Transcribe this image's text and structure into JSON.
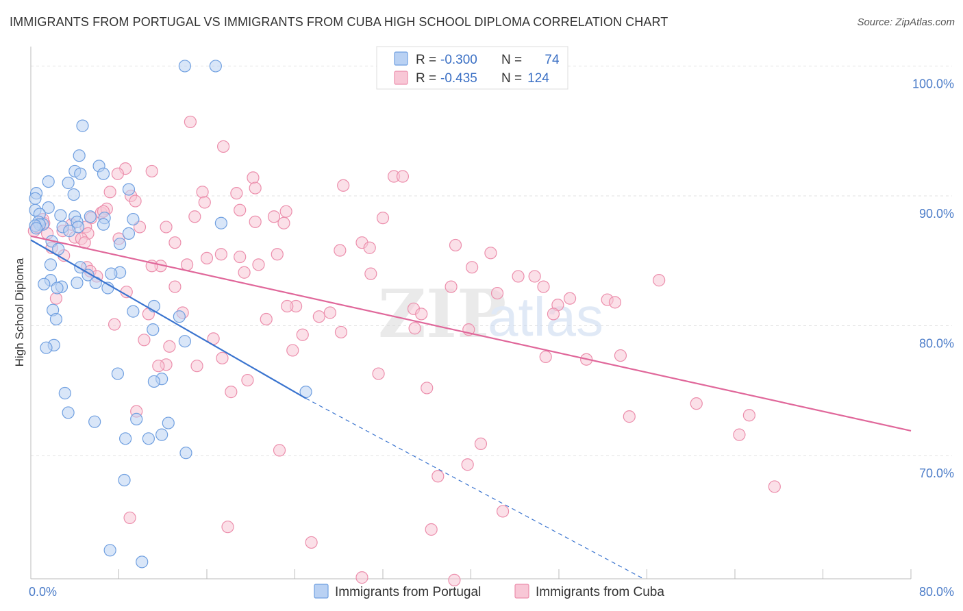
{
  "title": "IMMIGRANTS FROM PORTUGAL VS IMMIGRANTS FROM CUBA HIGH SCHOOL DIPLOMA CORRELATION CHART",
  "source": "Source: ZipAtlas.com",
  "watermark": {
    "zip": "ZIP",
    "atlas": "atlas"
  },
  "colors": {
    "portugal": "#6f9fe0",
    "portugal_fill": "#b9d1f3",
    "portugal_line": "#3a74cf",
    "cuba": "#ec8eac",
    "cuba_fill": "#f8c7d6",
    "cuba_line": "#e0679a",
    "grid": "#e2e2e2",
    "axis_text": "#4a7bc8"
  },
  "legend_top": {
    "portugal": {
      "r_label": "R =",
      "r_value": "-0.300",
      "n_label": "N =",
      "n_value": "74"
    },
    "cuba": {
      "r_label": "R =",
      "r_value": "-0.435",
      "n_label": "N =",
      "n_value": "124"
    }
  },
  "chart_data": {
    "type": "scatter",
    "title": "IMMIGRANTS FROM PORTUGAL VS IMMIGRANTS FROM CUBA HIGH SCHOOL DIPLOMA CORRELATION CHART",
    "xlabel": "",
    "ylabel": "High School Diploma",
    "xlim": [
      0,
      80
    ],
    "ylim": [
      60.5,
      101.5
    ],
    "x_tick_labels": [
      {
        "value": 0,
        "label": "0.0%"
      },
      {
        "value": 80,
        "label": "80.0%"
      }
    ],
    "x_minor_ticks": [
      0,
      8,
      16,
      24,
      32,
      40,
      48,
      56,
      64,
      72,
      80
    ],
    "y_ticks": [
      {
        "value": 100,
        "label": "100.0%"
      },
      {
        "value": 90,
        "label": "90.0%"
      },
      {
        "value": 80,
        "label": "80.0%"
      },
      {
        "value": 70,
        "label": "70.0%"
      }
    ],
    "grid": true,
    "legend_position": "bottom-center",
    "series": [
      {
        "name": "Immigrants from Portugal",
        "color": "#6f9fe0",
        "r": -0.3,
        "n": 74,
        "trend": {
          "x0": 0,
          "y0": 86.6,
          "x1": 25,
          "y1": 74.4,
          "dash_to_x": 55.7,
          "dash_to_y": 60.5
        },
        "points": [
          [
            14.0,
            100.0
          ],
          [
            16.8,
            100.0
          ],
          [
            4.7,
            95.4
          ],
          [
            4.4,
            93.1
          ],
          [
            6.2,
            92.3
          ],
          [
            4.0,
            91.9
          ],
          [
            6.6,
            91.7
          ],
          [
            4.5,
            91.7
          ],
          [
            1.6,
            91.1
          ],
          [
            3.4,
            91.0
          ],
          [
            8.9,
            90.5
          ],
          [
            0.5,
            90.2
          ],
          [
            3.9,
            90.1
          ],
          [
            0.4,
            89.8
          ],
          [
            1.6,
            89.1
          ],
          [
            0.4,
            88.9
          ],
          [
            0.8,
            88.6
          ],
          [
            2.7,
            88.5
          ],
          [
            5.4,
            88.4
          ],
          [
            4.0,
            88.4
          ],
          [
            6.7,
            88.3
          ],
          [
            4.2,
            88.0
          ],
          [
            0.7,
            88.0
          ],
          [
            9.3,
            88.2
          ],
          [
            2.9,
            87.6
          ],
          [
            17.3,
            87.9
          ],
          [
            6.6,
            87.8
          ],
          [
            1.1,
            87.8
          ],
          [
            0.8,
            87.8
          ],
          [
            0.4,
            87.7
          ],
          [
            4.3,
            87.6
          ],
          [
            0.5,
            87.5
          ],
          [
            3.5,
            87.3
          ],
          [
            8.9,
            87.1
          ],
          [
            1.9,
            86.5
          ],
          [
            8.1,
            86.3
          ],
          [
            2.5,
            85.9
          ],
          [
            1.8,
            84.7
          ],
          [
            4.5,
            84.5
          ],
          [
            8.1,
            84.1
          ],
          [
            7.3,
            84.0
          ],
          [
            5.2,
            83.9
          ],
          [
            1.8,
            83.5
          ],
          [
            5.9,
            83.3
          ],
          [
            4.2,
            83.3
          ],
          [
            1.2,
            83.2
          ],
          [
            2.8,
            83.0
          ],
          [
            2.4,
            82.9
          ],
          [
            7.0,
            82.9
          ],
          [
            11.2,
            81.5
          ],
          [
            9.3,
            81.1
          ],
          [
            2.0,
            81.2
          ],
          [
            2.3,
            80.5
          ],
          [
            13.5,
            80.7
          ],
          [
            11.1,
            79.7
          ],
          [
            14.0,
            78.8
          ],
          [
            2.1,
            78.5
          ],
          [
            1.4,
            78.3
          ],
          [
            7.9,
            76.3
          ],
          [
            11.9,
            75.9
          ],
          [
            11.2,
            75.7
          ],
          [
            3.1,
            74.8
          ],
          [
            25.0,
            74.9
          ],
          [
            3.4,
            73.3
          ],
          [
            9.6,
            72.8
          ],
          [
            5.8,
            72.6
          ],
          [
            12.5,
            72.5
          ],
          [
            11.9,
            71.6
          ],
          [
            8.6,
            71.3
          ],
          [
            10.7,
            71.3
          ],
          [
            14.1,
            70.2
          ],
          [
            8.5,
            68.1
          ],
          [
            7.2,
            62.7
          ],
          [
            10.1,
            61.8
          ]
        ]
      },
      {
        "name": "Immigrants from Cuba",
        "color": "#ec8eac",
        "r": -0.435,
        "n": 124,
        "trend": {
          "x0": 0,
          "y0": 86.9,
          "x1": 80,
          "y1": 71.9
        },
        "points": [
          [
            14.5,
            95.7
          ],
          [
            17.5,
            93.8
          ],
          [
            8.6,
            92.1
          ],
          [
            11.0,
            91.9
          ],
          [
            7.9,
            91.7
          ],
          [
            33.0,
            91.5
          ],
          [
            20.2,
            91.4
          ],
          [
            33.8,
            91.5
          ],
          [
            28.4,
            90.8
          ],
          [
            20.4,
            90.6
          ],
          [
            7.2,
            90.3
          ],
          [
            15.6,
            90.3
          ],
          [
            18.7,
            90.2
          ],
          [
            9.1,
            90.0
          ],
          [
            9.5,
            89.6
          ],
          [
            15.8,
            89.5
          ],
          [
            6.4,
            88.7
          ],
          [
            19.0,
            88.9
          ],
          [
            23.2,
            88.8
          ],
          [
            6.9,
            89.0
          ],
          [
            14.9,
            88.4
          ],
          [
            22.1,
            88.4
          ],
          [
            5.5,
            88.3
          ],
          [
            32.0,
            88.3
          ],
          [
            20.4,
            88.0
          ],
          [
            23.0,
            87.9
          ],
          [
            3.7,
            87.8
          ],
          [
            1.2,
            87.9
          ],
          [
            12.3,
            87.6
          ],
          [
            5.0,
            87.6
          ],
          [
            2.9,
            87.3
          ],
          [
            0.3,
            87.3
          ],
          [
            5.2,
            87.1
          ],
          [
            1.5,
            87.1
          ],
          [
            8.0,
            86.7
          ],
          [
            4.0,
            86.8
          ],
          [
            4.6,
            86.7
          ],
          [
            13.1,
            86.4
          ],
          [
            30.1,
            86.4
          ],
          [
            4.9,
            86.4
          ],
          [
            1.9,
            86.0
          ],
          [
            28.1,
            85.8
          ],
          [
            38.6,
            86.2
          ],
          [
            30.8,
            86.0
          ],
          [
            16.0,
            85.2
          ],
          [
            22.4,
            85.5
          ],
          [
            3.0,
            85.4
          ],
          [
            17.3,
            85.5
          ],
          [
            19.0,
            85.3
          ],
          [
            41.8,
            85.6
          ],
          [
            11.8,
            84.6
          ],
          [
            14.2,
            84.7
          ],
          [
            20.7,
            84.7
          ],
          [
            11.0,
            84.6
          ],
          [
            40.1,
            84.5
          ],
          [
            5.1,
            84.5
          ],
          [
            5.4,
            84.2
          ],
          [
            6.0,
            83.8
          ],
          [
            19.4,
            84.1
          ],
          [
            30.9,
            84.0
          ],
          [
            44.3,
            83.8
          ],
          [
            45.8,
            83.8
          ],
          [
            57.1,
            83.5
          ],
          [
            13.1,
            83.0
          ],
          [
            46.6,
            83.0
          ],
          [
            38.2,
            83.0
          ],
          [
            8.7,
            82.6
          ],
          [
            42.4,
            82.5
          ],
          [
            2.3,
            82.1
          ],
          [
            49.0,
            82.1
          ],
          [
            52.4,
            82.0
          ],
          [
            53.1,
            81.8
          ],
          [
            47.9,
            81.6
          ],
          [
            24.1,
            81.5
          ],
          [
            23.3,
            81.5
          ],
          [
            34.8,
            81.3
          ],
          [
            47.5,
            80.9
          ],
          [
            13.8,
            81.0
          ],
          [
            27.2,
            81.0
          ],
          [
            10.7,
            80.9
          ],
          [
            35.5,
            80.9
          ],
          [
            26.2,
            80.7
          ],
          [
            21.4,
            80.5
          ],
          [
            7.6,
            80.1
          ],
          [
            34.9,
            79.8
          ],
          [
            39.8,
            79.7
          ],
          [
            28.2,
            79.5
          ],
          [
            16.6,
            79.0
          ],
          [
            10.3,
            78.9
          ],
          [
            24.7,
            79.3
          ],
          [
            12.6,
            78.4
          ],
          [
            23.8,
            78.1
          ],
          [
            46.8,
            77.6
          ],
          [
            17.4,
            77.5
          ],
          [
            53.6,
            77.7
          ],
          [
            50.5,
            77.4
          ],
          [
            12.3,
            77.0
          ],
          [
            15.1,
            76.9
          ],
          [
            11.6,
            76.9
          ],
          [
            31.6,
            76.3
          ],
          [
            19.7,
            75.8
          ],
          [
            36.0,
            75.2
          ],
          [
            18.2,
            74.9
          ],
          [
            60.5,
            74.0
          ],
          [
            65.3,
            73.1
          ],
          [
            9.6,
            73.4
          ],
          [
            54.4,
            73.0
          ],
          [
            64.4,
            71.6
          ],
          [
            40.9,
            70.9
          ],
          [
            22.6,
            70.4
          ],
          [
            39.7,
            69.3
          ],
          [
            37.0,
            68.4
          ],
          [
            67.6,
            67.6
          ],
          [
            42.9,
            65.7
          ],
          [
            9.0,
            65.2
          ],
          [
            17.9,
            64.5
          ],
          [
            36.4,
            64.3
          ],
          [
            25.5,
            63.3
          ],
          [
            30.1,
            60.6
          ],
          [
            38.5,
            60.4
          ],
          [
            0.6,
            87.6
          ],
          [
            1.1,
            88.2
          ],
          [
            6.6,
            88.8
          ],
          [
            9.9,
            87.6
          ]
        ]
      }
    ]
  },
  "bottom_legend": [
    {
      "label": "Immigrants from Portugal"
    },
    {
      "label": "Immigrants from Cuba"
    }
  ]
}
